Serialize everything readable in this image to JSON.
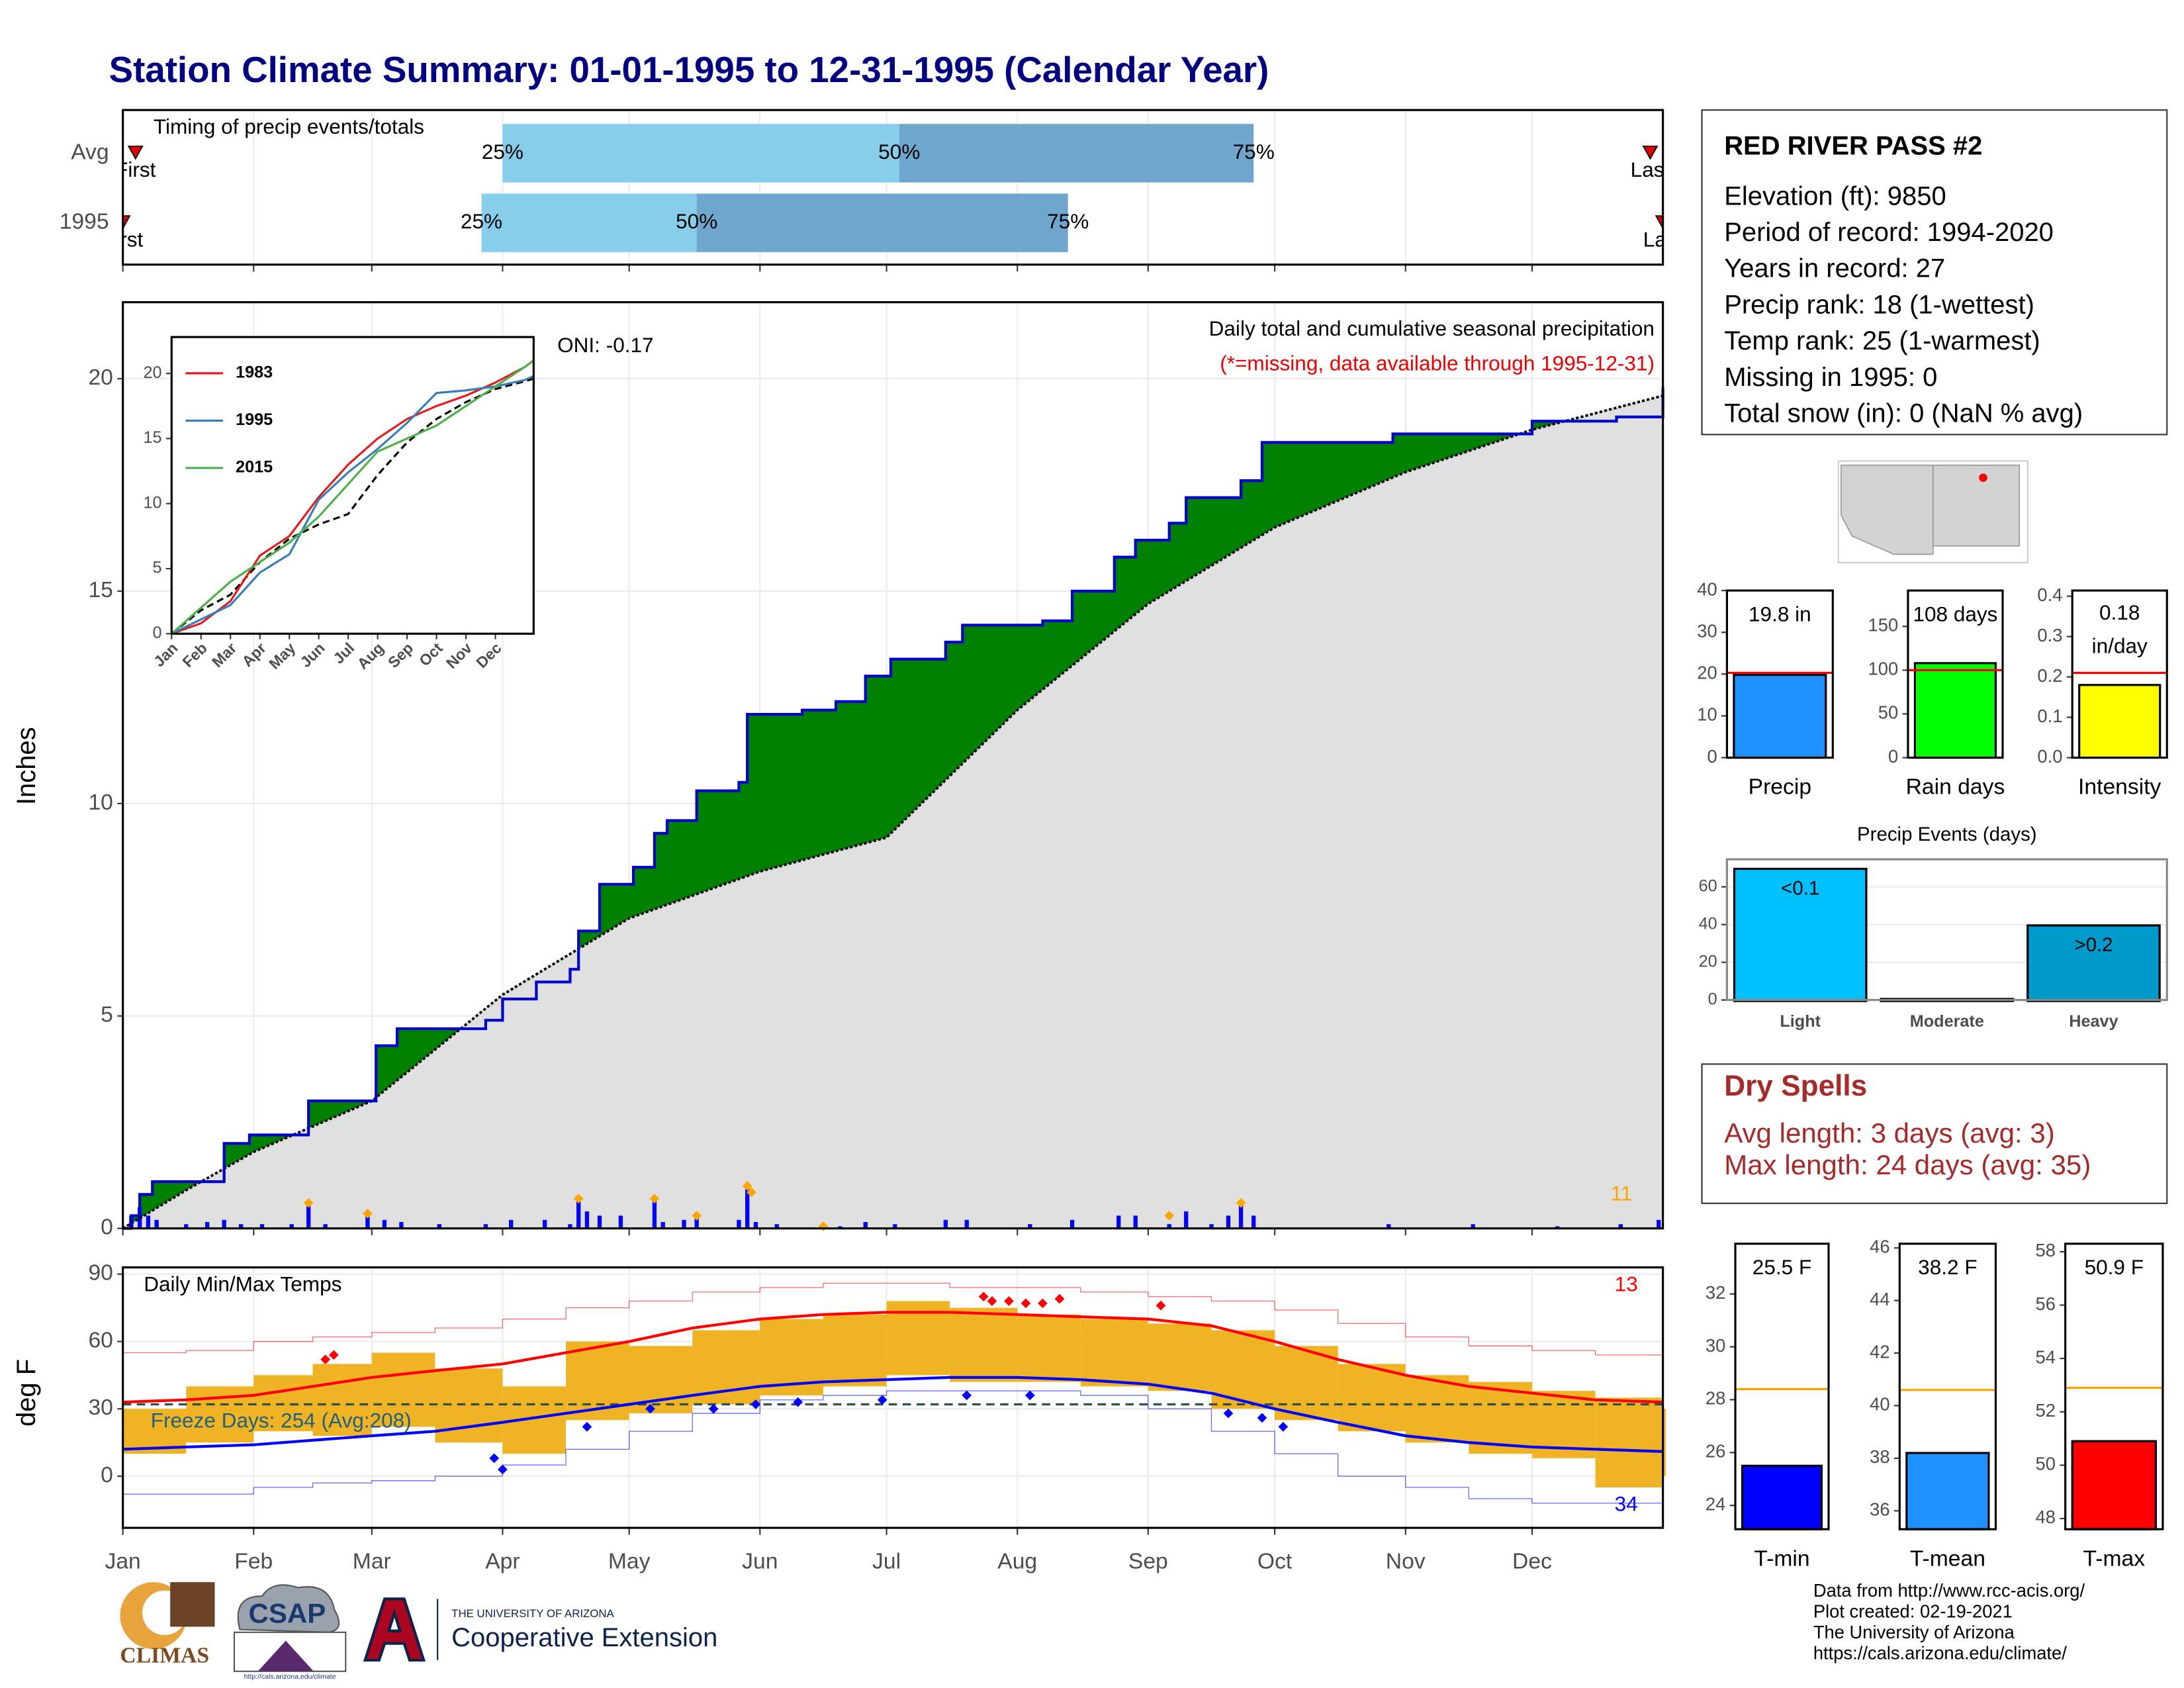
{
  "title": "Station Climate Summary: 01-01-1995 to 12-31-1995 (Calendar Year)",
  "chart_data": [
    {
      "type": "timing",
      "title": "Timing of precip events/totals",
      "categories": [
        "Avg",
        "1995"
      ],
      "xlim": [
        0,
        365
      ],
      "quartiles": [
        [
          90,
          184,
          268
        ],
        [
          85,
          136,
          224
        ]
      ],
      "quartile_labels": [
        "25%",
        "50%",
        "75%"
      ],
      "first": [
        3,
        0
      ],
      "last": [
        362,
        365
      ],
      "first_label": "First",
      "last_label": "Last",
      "colors": [
        "#87ceeb",
        "#6ea6cd"
      ],
      "marker_color": "#dd0000"
    },
    {
      "type": "cumulative",
      "title": "Daily total and cumulative seasonal precipitation",
      "subtitle": "(*=missing, data available through 1995-12-31)",
      "annotation": "ONI: -0.17",
      "y_label": "Inches",
      "xlim": [
        0,
        365
      ],
      "ylim": [
        0,
        21.8
      ],
      "yticks": [
        0,
        5,
        10,
        15,
        20
      ],
      "grid": true,
      "cumulative": {
        "color": "#0000cc",
        "fill": "#008000",
        "x": [
          0,
          2,
          4,
          7,
          15,
          24,
          30,
          43,
          44,
          57,
          60,
          65,
          86,
          90,
          98,
          106,
          108,
          113,
          121,
          126,
          129,
          136,
          146,
          148,
          161,
          169,
          176,
          182,
          195,
          199,
          218,
          225,
          235,
          240,
          248,
          252,
          265,
          270,
          295,
          301,
          334,
          354,
          365
        ],
        "values": [
          0,
          0.3,
          0.8,
          1.1,
          1.1,
          2.0,
          2.2,
          2.2,
          3.0,
          3.0,
          4.3,
          4.7,
          4.9,
          5.4,
          5.8,
          6.1,
          7.0,
          8.1,
          8.5,
          9.3,
          9.6,
          10.3,
          10.5,
          12.1,
          12.2,
          12.4,
          13.0,
          13.4,
          13.8,
          14.2,
          14.3,
          15.0,
          15.8,
          16.2,
          16.6,
          17.2,
          17.6,
          18.5,
          18.5,
          18.7,
          19.0,
          19.1,
          19.8
        ]
      },
      "average": {
        "color": "#000000",
        "fill": "#e0e0e0",
        "x": [
          0,
          15,
          31,
          59,
          90,
          120,
          151,
          181,
          212,
          243,
          273,
          304,
          334,
          365
        ],
        "values": [
          0,
          0.9,
          1.8,
          3.0,
          5.5,
          7.3,
          8.4,
          9.2,
          12.2,
          14.7,
          16.5,
          17.8,
          18.8,
          19.6
        ]
      },
      "daily": {
        "color": "#0000ff",
        "x": [
          2,
          4,
          6,
          8,
          15,
          20,
          24,
          28,
          33,
          40,
          44,
          48,
          58,
          62,
          66,
          75,
          86,
          92,
          100,
          106,
          108,
          110,
          113,
          118,
          126,
          128,
          133,
          136,
          146,
          148,
          150,
          155,
          166,
          170,
          176,
          183,
          195,
          200,
          215,
          225,
          236,
          240,
          248,
          252,
          258,
          262,
          265,
          268,
          300,
          320,
          340,
          355,
          364
        ],
        "values": [
          0.3,
          0.5,
          0.3,
          0.2,
          0.1,
          0.15,
          0.2,
          0.1,
          0.1,
          0.1,
          0.6,
          0.1,
          0.35,
          0.2,
          0.15,
          0.1,
          0.1,
          0.2,
          0.2,
          0.1,
          0.7,
          0.4,
          0.3,
          0.3,
          0.7,
          0.15,
          0.2,
          0.3,
          0.2,
          1.0,
          0.15,
          0.1,
          0.05,
          0.05,
          0.15,
          0.1,
          0.2,
          0.2,
          0.1,
          0.2,
          0.3,
          0.3,
          0.1,
          0.4,
          0.1,
          0.3,
          0.6,
          0.3,
          0.1,
          0.1,
          0.05,
          0.1,
          0.2
        ]
      },
      "extremes": {
        "color": "#ffa500",
        "x": [
          44,
          58,
          108,
          126,
          136,
          148,
          149,
          166,
          248,
          265
        ],
        "values": [
          0.6,
          0.35,
          0.7,
          0.7,
          0.3,
          1.0,
          0.85,
          0.05,
          0.3,
          0.6
        ]
      },
      "extreme_count": "11"
    },
    {
      "type": "line",
      "xlim": [
        0,
        12.3
      ],
      "ylim": [
        0,
        22.8
      ],
      "yticks": [
        0,
        5,
        10,
        15,
        20
      ],
      "xticks": [
        {
          "value": 0,
          "label": "Jan"
        },
        {
          "value": 1,
          "label": "Feb"
        },
        {
          "value": 2,
          "label": "Mar"
        },
        {
          "value": 3,
          "label": "Apr"
        },
        {
          "value": 4,
          "label": "May"
        },
        {
          "value": 5,
          "label": "Jun"
        },
        {
          "value": 6,
          "label": "Jul"
        },
        {
          "value": 7,
          "label": "Aug"
        },
        {
          "value": 8,
          "label": "Sep"
        },
        {
          "value": 9,
          "label": "Oct"
        },
        {
          "value": 10,
          "label": "Nov"
        },
        {
          "value": 11,
          "label": "Dec"
        }
      ],
      "x": [
        0,
        1,
        2,
        3,
        4,
        5,
        6,
        7,
        8,
        9,
        10,
        11,
        12,
        12.3
      ],
      "series": [
        {
          "name": "1983",
          "color": "#e41a1c",
          "values": [
            0,
            0.8,
            2.5,
            6.0,
            7.5,
            10.5,
            13.0,
            15.0,
            16.5,
            17.5,
            18.3,
            19.3,
            20.5,
            21.0
          ]
        },
        {
          "name": "1995",
          "color": "#377eb8",
          "values": [
            0,
            1.1,
            2.2,
            4.7,
            6.1,
            10.3,
            12.4,
            14.2,
            16.2,
            18.5,
            18.7,
            19.0,
            19.5,
            19.8
          ]
        },
        {
          "name": "2015",
          "color": "#4daf4a",
          "values": [
            0,
            2.0,
            4.0,
            5.5,
            7.0,
            9.0,
            11.5,
            14.0,
            15.0,
            16.0,
            17.5,
            19.0,
            20.5,
            21.0
          ]
        }
      ],
      "average": {
        "color": "#000000",
        "values": [
          0,
          1.8,
          3.0,
          5.5,
          7.3,
          8.4,
          9.2,
          12.2,
          14.7,
          16.5,
          17.8,
          18.8,
          19.4,
          19.6
        ]
      }
    },
    {
      "type": "temperature",
      "title": "Daily Min/Max Temps",
      "y_label": "deg F",
      "xlim": [
        0,
        365
      ],
      "ylim": [
        -23,
        93
      ],
      "yticks": [
        0,
        30,
        60,
        90
      ],
      "grid": true,
      "xticks": [
        {
          "value": 0,
          "label": "Jan"
        },
        {
          "value": 31,
          "label": "Feb"
        },
        {
          "value": 59,
          "label": "Mar"
        },
        {
          "value": 90,
          "label": "Apr"
        },
        {
          "value": 120,
          "label": "May"
        },
        {
          "value": 151,
          "label": "Jun"
        },
        {
          "value": 181,
          "label": "Jul"
        },
        {
          "value": 212,
          "label": "Aug"
        },
        {
          "value": 243,
          "label": "Sep"
        },
        {
          "value": 273,
          "label": "Oct"
        },
        {
          "value": 304,
          "label": "Nov"
        },
        {
          "value": 334,
          "label": "Dec"
        }
      ],
      "x": [
        0,
        15,
        31,
        45,
        59,
        74,
        90,
        105,
        120,
        135,
        151,
        166,
        181,
        196,
        212,
        227,
        243,
        258,
        273,
        288,
        304,
        319,
        334,
        349,
        365
      ],
      "max": [
        30,
        40,
        45,
        50,
        55,
        48,
        40,
        60,
        58,
        65,
        70,
        72,
        78,
        75,
        72,
        70,
        68,
        65,
        58,
        50,
        45,
        42,
        38,
        35,
        30
      ],
      "min": [
        10,
        15,
        20,
        18,
        22,
        15,
        10,
        25,
        28,
        32,
        36,
        40,
        45,
        42,
        42,
        40,
        38,
        30,
        25,
        20,
        15,
        10,
        8,
        -5,
        0
      ],
      "avg_max": [
        33,
        34,
        36,
        40,
        44,
        47,
        50,
        55,
        60,
        66,
        70,
        72,
        73,
        73,
        72,
        71,
        70,
        67,
        60,
        52,
        45,
        40,
        37,
        34,
        33
      ],
      "avg_min": [
        12,
        13,
        14,
        16,
        18,
        20,
        24,
        28,
        32,
        36,
        40,
        42,
        43,
        44,
        44,
        43,
        41,
        37,
        30,
        24,
        18,
        15,
        13,
        12,
        11
      ],
      "record_high": [
        55,
        56,
        60,
        62,
        64,
        66,
        70,
        75,
        78,
        82,
        84,
        86,
        86,
        84,
        84,
        82,
        80,
        78,
        74,
        68,
        62,
        58,
        56,
        54,
        52
      ],
      "record_low": [
        -8,
        -8,
        -5,
        -3,
        -2,
        0,
        5,
        12,
        20,
        28,
        34,
        36,
        38,
        38,
        38,
        36,
        30,
        20,
        10,
        0,
        -5,
        -10,
        -12,
        -12,
        -10
      ],
      "bar_color": "#f0b323",
      "max_color": "#ff0000",
      "min_color": "#0000ff",
      "record_high_days": {
        "x": [
          48,
          50,
          204,
          206,
          210,
          214,
          218,
          222,
          246
        ],
        "values": [
          52,
          54,
          80,
          78,
          78,
          77,
          77,
          79,
          76
        ]
      },
      "record_low_days": {
        "x": [
          88,
          90,
          110,
          125,
          140,
          150,
          160,
          180,
          200,
          215,
          262,
          270,
          275
        ],
        "values": [
          8,
          3,
          22,
          30,
          30,
          32,
          33,
          34,
          36,
          36,
          28,
          26,
          22
        ]
      },
      "freeze_threshold": 32,
      "freeze_label": "Freeze Days: 254 (Avg:208)",
      "record_high_count": "13",
      "record_low_count": "34"
    },
    {
      "type": "summary_bar",
      "categories": [
        "Precip"
      ],
      "values": [
        19.8
      ],
      "value_labels": [
        "19.8 in"
      ],
      "average": 20.3,
      "average_color": "#ff0000",
      "color": "#1e90ff",
      "ylim": [
        0,
        40
      ],
      "yticks": [
        0,
        10,
        20,
        30,
        40
      ]
    },
    {
      "type": "summary_bar",
      "categories": [
        "Rain days"
      ],
      "values": [
        108
      ],
      "value_labels": [
        "108 days"
      ],
      "average": 100,
      "average_color": "#ff0000",
      "color": "#00ff00",
      "ylim": [
        0,
        191
      ],
      "yticks": [
        0,
        50,
        100,
        150
      ]
    },
    {
      "type": "summary_bar",
      "categories": [
        "Intensity"
      ],
      "values": [
        0.18
      ],
      "value_labels": [
        "0.18 in/day"
      ],
      "average": 0.21,
      "average_color": "#ff0000",
      "color": "#ffff00",
      "ylim": [
        0,
        0.414
      ],
      "yticks": [
        {
          "value": 0,
          "label": "0.0"
        },
        0.1,
        0.2,
        0.3,
        0.4
      ]
    },
    {
      "type": "bar",
      "title": "Precip Events (days)",
      "categories": [
        "Light",
        "Moderate",
        "Heavy"
      ],
      "values": [
        69,
        0,
        39
      ],
      "bar_labels": [
        "<0.1",
        null,
        ">0.2"
      ],
      "colors": [
        "#00bfff",
        "#00bfff",
        "#0099cc"
      ],
      "ylim": [
        0,
        74.6
      ],
      "yticks": [
        0,
        20,
        40,
        60
      ],
      "grid": true
    },
    {
      "type": "summary_bar",
      "categories": [
        "T-min"
      ],
      "values": [
        25.5
      ],
      "value_labels": [
        "25.5 F"
      ],
      "average": 28.4,
      "average_color": "#ffa500",
      "color": "#0000ff",
      "ylim": [
        23.1,
        33.9
      ],
      "yticks": [
        24,
        26,
        28,
        30,
        32
      ]
    },
    {
      "type": "summary_bar",
      "categories": [
        "T-mean"
      ],
      "values": [
        38.2
      ],
      "value_labels": [
        "38.2 F"
      ],
      "average": 40.6,
      "average_color": "#ffa500",
      "color": "#1e90ff",
      "ylim": [
        35.3,
        46.16
      ],
      "yticks": [
        36,
        38,
        40,
        42,
        44,
        46
      ]
    },
    {
      "type": "summary_bar",
      "categories": [
        "T-max"
      ],
      "values": [
        50.9
      ],
      "value_labels": [
        "50.9 F"
      ],
      "average": 52.9,
      "average_color": "#ffa500",
      "color": "#ff0000",
      "ylim": [
        47.6,
        58.3
      ],
      "yticks": [
        48,
        50,
        52,
        54,
        56,
        58
      ]
    }
  ],
  "station": {
    "name": "RED RIVER PASS #2",
    "lines": [
      "Elevation (ft): 9850",
      "Period of record: 1994-2020",
      "Years in record: 27",
      "Precip rank: 18 (1-wettest)",
      "Temp rank: 25 (1-warmest)",
      "Missing in 1995: 0",
      "Total snow (in): 0 (NaN % avg)"
    ]
  },
  "dry_spells": {
    "title": "Dry Spells",
    "lines": [
      "Avg length: 3 days (avg: 3)",
      "Max length: 24 days (avg: 35)"
    ]
  },
  "footer": [
    "Data from http://www.rcc-acis.org/",
    "Plot created: 02-19-2021",
    "The University of Arizona",
    "https://cals.arizona.edu/climate/"
  ],
  "logos": {
    "climas": "CLIMAS",
    "csap": "CSAP",
    "csap_url": "http://cals.arizona.edu/climate",
    "university": "THE UNIVERSITY OF ARIZONA",
    "extension": "Cooperative Extension"
  }
}
